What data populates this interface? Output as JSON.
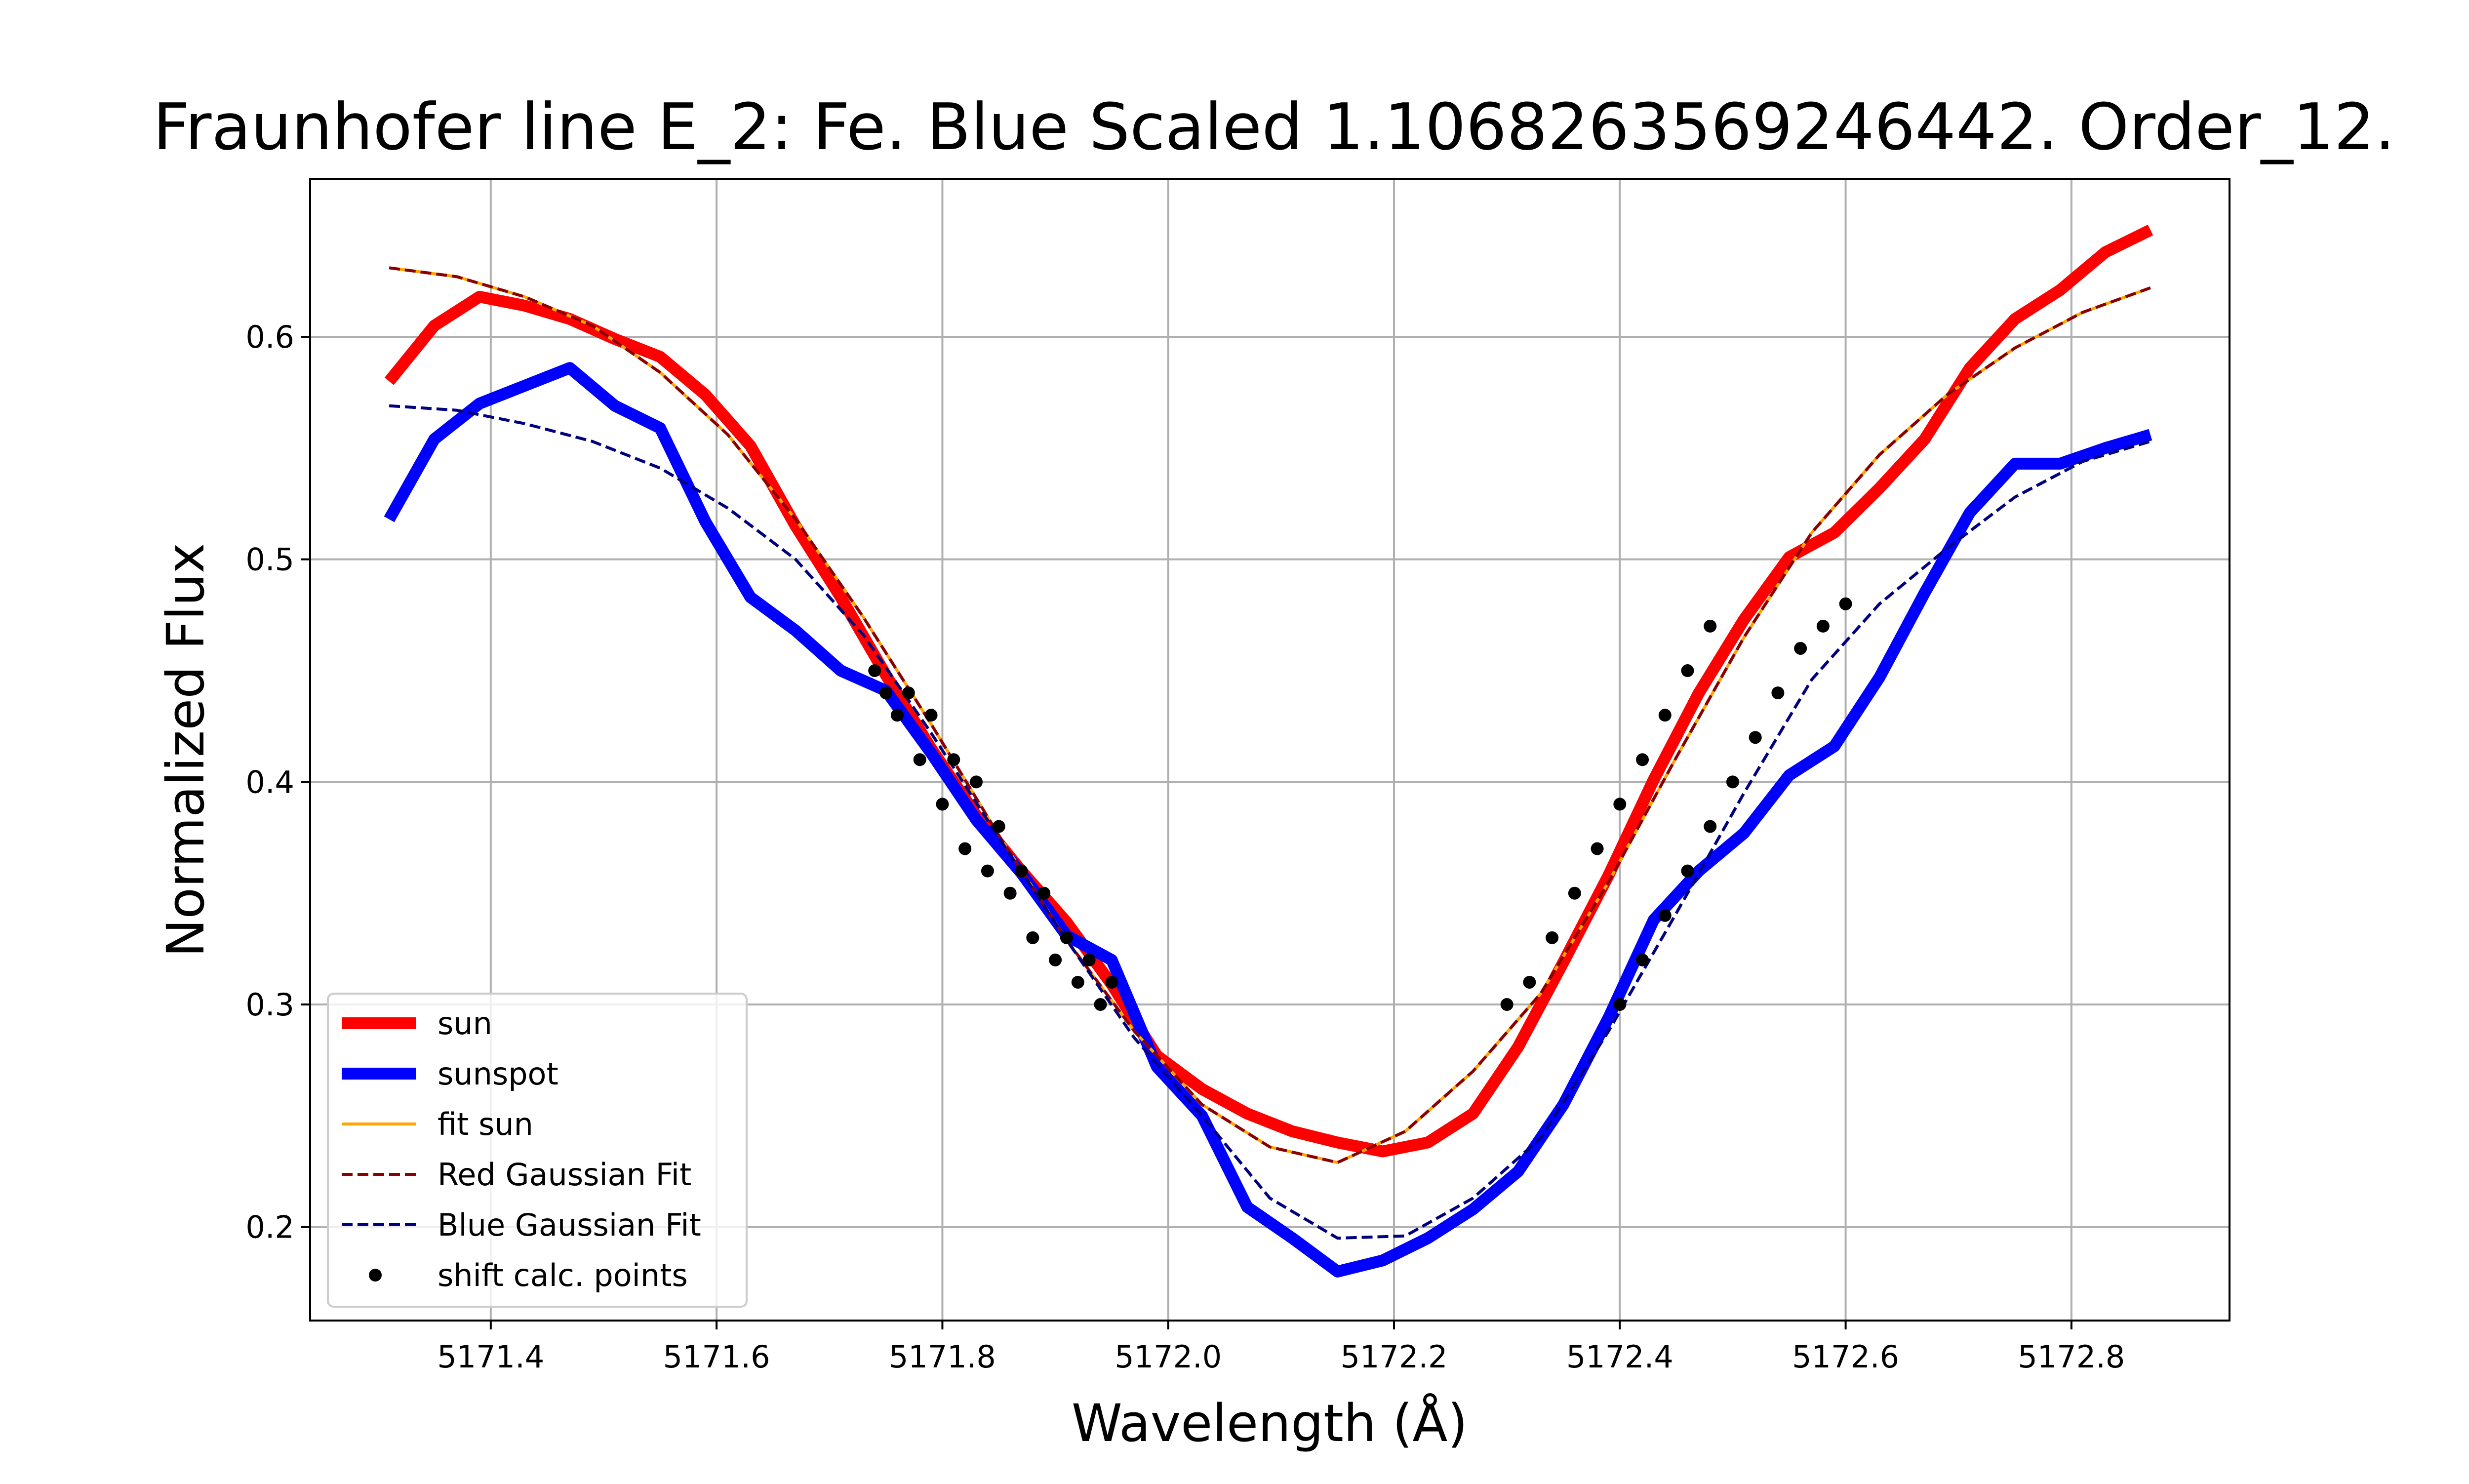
{
  "chart_data": {
    "type": "line",
    "title": "Fraunhofer line E_2: Fe. Blue Scaled 1.1068263569246442. Order_12.",
    "xlabel": "Wavelength (Å)",
    "ylabel": "Normalized Flux",
    "xlim": [
      5171.24,
      5172.94
    ],
    "ylim": [
      0.158,
      0.671
    ],
    "xticks": [
      5171.4,
      5171.6,
      5171.8,
      5172.0,
      5172.2,
      5172.4,
      5172.6,
      5172.8
    ],
    "xtick_labels": [
      "5171.4",
      "5171.6",
      "5171.8",
      "5172.0",
      "5172.2",
      "5172.4",
      "5172.6",
      "5172.8"
    ],
    "yticks": [
      0.2,
      0.3,
      0.4,
      0.5,
      0.6
    ],
    "ytick_labels": [
      "0.2",
      "0.3",
      "0.4",
      "0.5",
      "0.6"
    ],
    "grid": true,
    "legend_position": "lower-left",
    "series": [
      {
        "name": "sun",
        "style": "solid-thick",
        "color": "#ff0000",
        "x": [
          5171.31,
          5171.35,
          5171.39,
          5171.43,
          5171.47,
          5171.51,
          5171.55,
          5171.59,
          5171.63,
          5171.67,
          5171.71,
          5171.75,
          5171.79,
          5171.83,
          5171.87,
          5171.91,
          5171.95,
          5171.99,
          5172.03,
          5172.07,
          5172.11,
          5172.15,
          5172.19,
          5172.23,
          5172.27,
          5172.31,
          5172.35,
          5172.39,
          5172.43,
          5172.47,
          5172.51,
          5172.55,
          5172.59,
          5172.63,
          5172.67,
          5172.71,
          5172.75,
          5172.79,
          5172.83,
          5172.87
        ],
        "y": [
          0.58,
          0.605,
          0.618,
          0.614,
          0.608,
          0.599,
          0.591,
          0.574,
          0.551,
          0.515,
          0.483,
          0.448,
          0.415,
          0.385,
          0.36,
          0.337,
          0.309,
          0.277,
          0.262,
          0.251,
          0.243,
          0.238,
          0.234,
          0.238,
          0.251,
          0.281,
          0.319,
          0.358,
          0.401,
          0.44,
          0.473,
          0.501,
          0.512,
          0.532,
          0.554,
          0.586,
          0.608,
          0.621,
          0.638,
          0.648
        ]
      },
      {
        "name": "sunspot",
        "style": "solid-thick",
        "color": "#0000ff",
        "x": [
          5171.31,
          5171.35,
          5171.39,
          5171.43,
          5171.47,
          5171.51,
          5171.55,
          5171.59,
          5171.63,
          5171.67,
          5171.71,
          5171.75,
          5171.79,
          5171.83,
          5171.87,
          5171.91,
          5171.95,
          5171.99,
          5172.03,
          5172.07,
          5172.11,
          5172.15,
          5172.19,
          5172.23,
          5172.27,
          5172.31,
          5172.35,
          5172.39,
          5172.43,
          5172.47,
          5172.51,
          5172.55,
          5172.59,
          5172.63,
          5172.67,
          5172.71,
          5172.75,
          5172.79,
          5172.83,
          5172.87
        ],
        "y": [
          0.518,
          0.554,
          0.57,
          0.578,
          0.586,
          0.569,
          0.559,
          0.517,
          0.483,
          0.468,
          0.45,
          0.441,
          0.413,
          0.383,
          0.359,
          0.331,
          0.32,
          0.272,
          0.25,
          0.209,
          0.195,
          0.18,
          0.185,
          0.195,
          0.208,
          0.225,
          0.255,
          0.294,
          0.338,
          0.36,
          0.377,
          0.403,
          0.416,
          0.447,
          0.485,
          0.521,
          0.543,
          0.543,
          0.55,
          0.556
        ]
      },
      {
        "name": "fit sun",
        "style": "solid-thin",
        "color": "#ffa500",
        "x": [
          5171.31,
          5171.37,
          5171.43,
          5171.49,
          5171.55,
          5171.61,
          5171.67,
          5171.73,
          5171.79,
          5171.85,
          5171.91,
          5171.97,
          5172.03,
          5172.09,
          5172.15,
          5172.21,
          5172.27,
          5172.33,
          5172.39,
          5172.45,
          5172.51,
          5172.57,
          5172.63,
          5172.69,
          5172.75,
          5172.81,
          5172.87
        ],
        "y": [
          0.631,
          0.627,
          0.618,
          0.605,
          0.584,
          0.556,
          0.518,
          0.474,
          0.426,
          0.376,
          0.329,
          0.288,
          0.255,
          0.236,
          0.229,
          0.243,
          0.27,
          0.305,
          0.355,
          0.411,
          0.465,
          0.512,
          0.547,
          0.574,
          0.595,
          0.611,
          0.622
        ]
      },
      {
        "name": "Red Gaussian Fit",
        "style": "dashed",
        "color": "#8b0000",
        "x": [
          5171.31,
          5171.37,
          5171.43,
          5171.49,
          5171.55,
          5171.61,
          5171.67,
          5171.73,
          5171.79,
          5171.85,
          5171.91,
          5171.97,
          5172.03,
          5172.09,
          5172.15,
          5172.21,
          5172.27,
          5172.33,
          5172.39,
          5172.45,
          5172.51,
          5172.57,
          5172.63,
          5172.69,
          5172.75,
          5172.81,
          5172.87
        ],
        "y": [
          0.631,
          0.627,
          0.618,
          0.605,
          0.584,
          0.556,
          0.518,
          0.474,
          0.426,
          0.376,
          0.329,
          0.288,
          0.255,
          0.236,
          0.229,
          0.243,
          0.27,
          0.305,
          0.355,
          0.411,
          0.465,
          0.512,
          0.547,
          0.574,
          0.595,
          0.611,
          0.622
        ]
      },
      {
        "name": "Blue Gaussian Fit",
        "style": "dashed",
        "color": "#000080",
        "x": [
          5171.31,
          5171.37,
          5171.43,
          5171.49,
          5171.55,
          5171.61,
          5171.67,
          5171.73,
          5171.79,
          5171.85,
          5171.91,
          5171.97,
          5172.03,
          5172.09,
          5172.15,
          5172.21,
          5172.27,
          5172.33,
          5172.39,
          5172.45,
          5172.51,
          5172.57,
          5172.63,
          5172.69,
          5172.75,
          5172.81,
          5172.87
        ],
        "y": [
          0.569,
          0.567,
          0.561,
          0.553,
          0.541,
          0.523,
          0.5,
          0.466,
          0.422,
          0.375,
          0.329,
          0.285,
          0.25,
          0.213,
          0.195,
          0.196,
          0.213,
          0.24,
          0.288,
          0.341,
          0.395,
          0.446,
          0.48,
          0.505,
          0.528,
          0.544,
          0.553
        ]
      },
      {
        "name": "shift calc. points",
        "style": "markers",
        "color": "#000000",
        "x": [
          5171.74,
          5171.76,
          5171.78,
          5171.8,
          5171.82,
          5171.84,
          5171.86,
          5171.88,
          5171.9,
          5171.92,
          5171.94,
          5171.75,
          5171.77,
          5171.79,
          5171.81,
          5171.83,
          5171.85,
          5171.87,
          5171.89,
          5171.91,
          5171.93,
          5171.95,
          5172.3,
          5172.32,
          5172.34,
          5172.36,
          5172.38,
          5172.4,
          5172.42,
          5172.44,
          5172.46,
          5172.48,
          5172.4,
          5172.42,
          5172.44,
          5172.46,
          5172.48,
          5172.5,
          5172.52,
          5172.54,
          5172.56,
          5172.58,
          5172.6
        ],
        "y": [
          0.45,
          0.43,
          0.41,
          0.39,
          0.37,
          0.36,
          0.35,
          0.33,
          0.32,
          0.31,
          0.3,
          0.44,
          0.44,
          0.43,
          0.41,
          0.4,
          0.38,
          0.36,
          0.35,
          0.33,
          0.32,
          0.31,
          0.3,
          0.31,
          0.33,
          0.35,
          0.37,
          0.39,
          0.41,
          0.43,
          0.45,
          0.47,
          0.3,
          0.32,
          0.34,
          0.36,
          0.38,
          0.4,
          0.42,
          0.44,
          0.46,
          0.47,
          0.48
        ]
      }
    ]
  }
}
